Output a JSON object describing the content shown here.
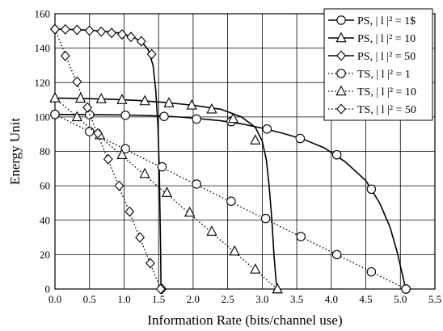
{
  "chart_data": {
    "type": "line",
    "xlabel": "Information Rate (bits/channel use)",
    "ylabel": "Energy Unit",
    "xlim": [
      0,
      5.5
    ],
    "ylim": [
      0,
      160
    ],
    "x_ticks": [
      0.0,
      0.5,
      1.0,
      1.5,
      2.0,
      2.5,
      3.0,
      3.5,
      4.0,
      4.5,
      5.0,
      5.5
    ],
    "x_tick_labels": [
      "0.0",
      "0.5",
      "1.0",
      "1.5",
      "2.0",
      "2.5",
      "3.0",
      "3.5",
      "4.0",
      "4.5",
      "5.0",
      "5.5"
    ],
    "y_ticks": [
      0,
      20,
      40,
      60,
      80,
      100,
      120,
      140,
      160
    ],
    "y_tick_labels": [
      "0",
      "20",
      "40",
      "60",
      "80",
      "100",
      "120",
      "140",
      "160"
    ],
    "grid": true,
    "legend_position": "top-right",
    "series": [
      {
        "name": "PS, | l |² = 1$",
        "line": "solid",
        "marker": "circle",
        "color": "#000000",
        "points": [
          [
            0,
            101.5
          ],
          [
            0.3,
            101.4
          ],
          [
            0.6,
            101.3
          ],
          [
            0.9,
            101.2
          ],
          [
            1.2,
            101
          ],
          [
            1.5,
            100.6
          ],
          [
            1.8,
            100
          ],
          [
            2.1,
            99
          ],
          [
            2.4,
            97.8
          ],
          [
            2.7,
            96
          ],
          [
            3.0,
            93.5
          ],
          [
            3.3,
            90.5
          ],
          [
            3.6,
            87
          ],
          [
            3.9,
            82
          ],
          [
            4.2,
            74
          ],
          [
            4.5,
            63
          ],
          [
            4.7,
            50
          ],
          [
            4.85,
            36
          ],
          [
            4.95,
            22
          ],
          [
            5.02,
            10
          ],
          [
            5.06,
            3
          ],
          [
            5.08,
            0
          ]
        ],
        "markers": [
          [
            0,
            101.5
          ],
          [
            0.5,
            101.3
          ],
          [
            1.02,
            101
          ],
          [
            1.58,
            100.3
          ],
          [
            2.05,
            98.8
          ],
          [
            2.55,
            97.3
          ],
          [
            3.07,
            93
          ],
          [
            3.55,
            87.5
          ],
          [
            4.08,
            78
          ],
          [
            4.58,
            58
          ],
          [
            5.08,
            0
          ]
        ]
      },
      {
        "name": "PS, | l |² = 10",
        "line": "solid",
        "marker": "triangle",
        "color": "#000000",
        "points": [
          [
            0,
            111
          ],
          [
            0.4,
            110.7
          ],
          [
            0.8,
            110.3
          ],
          [
            1.2,
            109.6
          ],
          [
            1.6,
            108.4
          ],
          [
            2.0,
            106.8
          ],
          [
            2.4,
            104.5
          ],
          [
            2.7,
            100
          ],
          [
            2.9,
            94
          ],
          [
            3.0,
            86
          ],
          [
            3.06,
            75
          ],
          [
            3.1,
            60
          ],
          [
            3.14,
            40
          ],
          [
            3.17,
            20
          ],
          [
            3.2,
            5
          ],
          [
            3.22,
            0
          ]
        ],
        "markers": [
          [
            0,
            111
          ],
          [
            0.37,
            110.8
          ],
          [
            0.67,
            110.5
          ],
          [
            0.97,
            110
          ],
          [
            1.3,
            109.3
          ],
          [
            1.65,
            108.1
          ],
          [
            1.98,
            106.8
          ],
          [
            2.27,
            104.5
          ],
          [
            2.58,
            99
          ],
          [
            2.9,
            86.5
          ],
          [
            3.22,
            0
          ]
        ]
      },
      {
        "name": "PS, | l |² = 50",
        "line": "solid",
        "marker": "diamond",
        "color": "#000000",
        "points": [
          [
            0,
            151
          ],
          [
            0.3,
            150.8
          ],
          [
            0.6,
            150.2
          ],
          [
            0.9,
            149
          ],
          [
            1.1,
            147
          ],
          [
            1.25,
            144
          ],
          [
            1.35,
            139
          ],
          [
            1.42,
            130
          ],
          [
            1.46,
            115
          ],
          [
            1.49,
            95
          ],
          [
            1.51,
            70
          ],
          [
            1.52,
            45
          ],
          [
            1.53,
            20
          ],
          [
            1.535,
            0
          ]
        ],
        "markers": [
          [
            0,
            151
          ],
          [
            0.15,
            150.9
          ],
          [
            0.32,
            150.6
          ],
          [
            0.5,
            150.2
          ],
          [
            0.67,
            149.6
          ],
          [
            0.82,
            148.8
          ],
          [
            0.97,
            148
          ],
          [
            1.1,
            146.5
          ],
          [
            1.25,
            144
          ],
          [
            1.4,
            136.5
          ],
          [
            1.55,
            0
          ]
        ]
      },
      {
        "name": "TS, | l |² = 1",
        "line": "dotted",
        "marker": "circle",
        "color": "#000000",
        "points": [
          [
            0,
            101.5
          ],
          [
            5.08,
            0
          ]
        ],
        "markers": [
          [
            0,
            101.5
          ],
          [
            0.5,
            91.5
          ],
          [
            1.02,
            81.5
          ],
          [
            1.55,
            71
          ],
          [
            2.05,
            61
          ],
          [
            2.55,
            51
          ],
          [
            3.05,
            41
          ],
          [
            3.56,
            30.5
          ],
          [
            4.08,
            20
          ],
          [
            4.58,
            10
          ],
          [
            5.08,
            0
          ]
        ]
      },
      {
        "name": "TS, | l |² = 10",
        "line": "dotted",
        "marker": "triangle",
        "color": "#000000",
        "points": [
          [
            0,
            111
          ],
          [
            3.22,
            0
          ]
        ],
        "markers": [
          [
            0,
            111
          ],
          [
            0.32,
            100
          ],
          [
            0.65,
            89.5
          ],
          [
            0.97,
            78
          ],
          [
            1.3,
            67
          ],
          [
            1.62,
            56
          ],
          [
            1.95,
            44.5
          ],
          [
            2.27,
            33.5
          ],
          [
            2.6,
            22
          ],
          [
            2.9,
            11.5
          ],
          [
            3.22,
            0
          ]
        ]
      },
      {
        "name": "TS, | l |² = 50",
        "line": "dotted",
        "marker": "diamond",
        "color": "#000000",
        "points": [
          [
            0,
            151
          ],
          [
            1.53,
            0
          ]
        ],
        "markers": [
          [
            0,
            151
          ],
          [
            0.15,
            135.5
          ],
          [
            0.32,
            120.5
          ],
          [
            0.47,
            105.5
          ],
          [
            0.62,
            90.5
          ],
          [
            0.77,
            75.5
          ],
          [
            0.93,
            60
          ],
          [
            1.08,
            45
          ],
          [
            1.23,
            30
          ],
          [
            1.38,
            15
          ],
          [
            1.53,
            0
          ]
        ]
      }
    ]
  }
}
